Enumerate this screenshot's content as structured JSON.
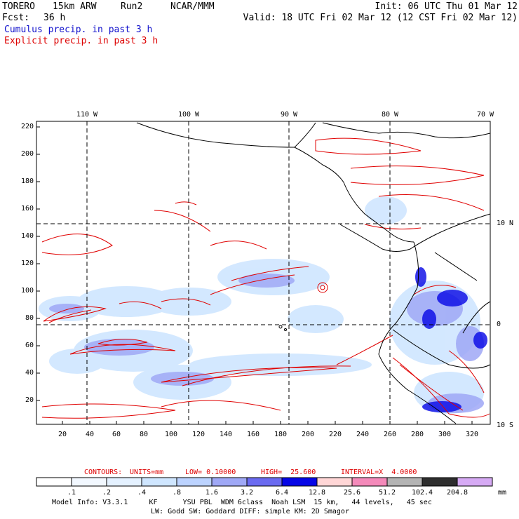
{
  "header": {
    "model": "TORERO",
    "resolution": "15km ARW",
    "run": "Run2",
    "center": "NCAR/MMM",
    "forecast_label": "Fcst:",
    "forecast_hours": "36 h",
    "init": "Init: 06 UTC Thu 01 Mar 12",
    "valid": "Valid: 18 UTC Fri 02 Mar 12 (12 CST Fri 02 Mar 12)"
  },
  "fields": {
    "cumulus": "Cumulus precip. in past 3 h",
    "explicit": "Explicit precip. in past 3 h"
  },
  "colors": {
    "header_blue": "#1010cc",
    "header_red": "#dd0000",
    "contour_red": "#e00000",
    "grid": "#000000"
  },
  "map": {
    "top_lon_labels": [
      "110 W",
      "100 W",
      "90 W",
      "80 W",
      "70 W"
    ],
    "right_lat_labels": [
      "10 N",
      "0",
      "10 S"
    ],
    "y_ticks": [
      "220",
      "200",
      "180",
      "160",
      "140",
      "120",
      "100",
      "80",
      "60",
      "40",
      "20"
    ],
    "x_ticks": [
      "20",
      "40",
      "60",
      "80",
      "100",
      "120",
      "140",
      "160",
      "180",
      "200",
      "220",
      "240",
      "260",
      "280",
      "300",
      "320"
    ]
  },
  "contour_info": {
    "title": "CONTOURS:",
    "units": "UNITS=mm",
    "low": "LOW= 0.10000",
    "high": "HIGH=  25.600",
    "interval": "INTERVAL=X  4.0000"
  },
  "colorbar": {
    "unit": "mm",
    "tick_labels": [
      ".1",
      ".2",
      ".4",
      ".8",
      "1.6",
      "3.2",
      "6.4",
      "12.8",
      "25.6",
      "51.2",
      "102.4",
      "204.8"
    ],
    "colors": [
      "#ffffff",
      "#f2f8ff",
      "#e4f1ff",
      "#cfe6ff",
      "#bcd3ff",
      "#9fa8f6",
      "#6a6af0",
      "#0606e6",
      "#ffd6d6",
      "#f48aba",
      "#b4b4b4",
      "#2e2e2e",
      "#d6aaf4"
    ]
  },
  "footer": {
    "line1": "Model Info: V3.3.1     KF      YSU PBL  WDM 6class  Noah LSM  15 km,   44 levels,   45 sec",
    "line2": "LW: Godd SW: Goddard DIFF: simple KM: 2D Smagor"
  }
}
